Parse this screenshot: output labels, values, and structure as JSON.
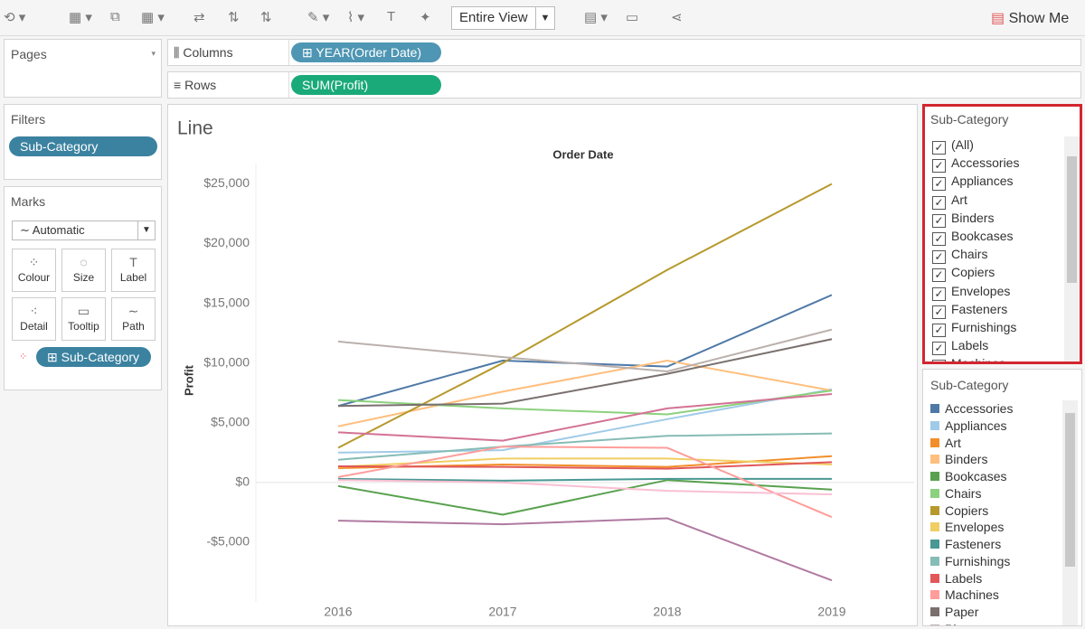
{
  "toolbar": {
    "view": "Entire View",
    "show_me": "Show Me"
  },
  "shelves": {
    "columns_label": "Columns",
    "columns_pill": "YEAR(Order Date)",
    "rows_label": "Rows",
    "rows_pill": "SUM(Profit)"
  },
  "pages": {
    "title": "Pages"
  },
  "filters": {
    "title": "Filters",
    "pill": "Sub-Category"
  },
  "marks": {
    "title": "Marks",
    "mark_type": "Automatic",
    "buttons": [
      "Colour",
      "Size",
      "Label",
      "Detail",
      "Tooltip",
      "Path"
    ],
    "pill": "Sub-Category"
  },
  "filter_card": {
    "title": "Sub-Category",
    "all_label": "(All)"
  },
  "legend": {
    "title": "Sub-Category"
  },
  "chart_data": {
    "type": "line",
    "title": "Line",
    "x_axis_title": "Order Date",
    "y_axis_title": "Profit",
    "categories": [
      "2016",
      "2017",
      "2018",
      "2019"
    ],
    "ylim": [
      -10000,
      26700
    ],
    "yticks": [
      {
        "value": -5000,
        "label": "-$5,000"
      },
      {
        "value": 0,
        "label": "$0"
      },
      {
        "value": 5000,
        "label": "$5,000"
      },
      {
        "value": 10000,
        "label": "$10,000"
      },
      {
        "value": 15000,
        "label": "$15,000"
      },
      {
        "value": 20000,
        "label": "$20,000"
      },
      {
        "value": 25000,
        "label": "$25,000"
      }
    ],
    "zero_line": true,
    "series": [
      {
        "name": "Accessories",
        "color": "#4e79a7",
        "values": [
          6400,
          10200,
          9700,
          15700
        ]
      },
      {
        "name": "Appliances",
        "color": "#a0cbe8",
        "values": [
          2500,
          2700,
          5300,
          7800
        ]
      },
      {
        "name": "Art",
        "color": "#f28e2b",
        "values": [
          1200,
          1500,
          1300,
          2200
        ]
      },
      {
        "name": "Binders",
        "color": "#ffbe7d",
        "values": [
          4700,
          7600,
          10200,
          7700
        ]
      },
      {
        "name": "Bookcases",
        "color": "#59a14f",
        "values": [
          -300,
          -2700,
          200,
          -600
        ]
      },
      {
        "name": "Chairs",
        "color": "#8cd17d",
        "values": [
          6900,
          6200,
          5700,
          7700
        ]
      },
      {
        "name": "Copiers",
        "color": "#b6992d",
        "values": [
          2900,
          10000,
          17800,
          25000
        ]
      },
      {
        "name": "Envelopes",
        "color": "#f1ce63",
        "values": [
          1300,
          2000,
          2000,
          1500
        ]
      },
      {
        "name": "Fasteners",
        "color": "#499894",
        "values": [
          300,
          150,
          300,
          300
        ]
      },
      {
        "name": "Furnishings",
        "color": "#86bcb6",
        "values": [
          1900,
          3000,
          3900,
          4100
        ]
      },
      {
        "name": "Labels",
        "color": "#e15759",
        "values": [
          1350,
          1300,
          1150,
          1700
        ]
      },
      {
        "name": "Machines",
        "color": "#ff9d9a",
        "values": [
          450,
          3000,
          2900,
          -2900
        ]
      },
      {
        "name": "Paper",
        "color": "#79706e",
        "values": [
          6400,
          6600,
          9100,
          12000
        ]
      },
      {
        "name": "Phones",
        "color": "#bab0ac",
        "values": [
          11800,
          10500,
          9300,
          12800
        ]
      },
      {
        "color": "#d37295",
        "values": [
          4200,
          3500,
          6200,
          7400
        ]
      },
      {
        "color": "#fabfd2",
        "values": [
          200,
          0,
          -700,
          -1000
        ]
      },
      {
        "color": "#b07aa1",
        "values": [
          -3200,
          -3500,
          -3000,
          -8200
        ]
      }
    ]
  }
}
